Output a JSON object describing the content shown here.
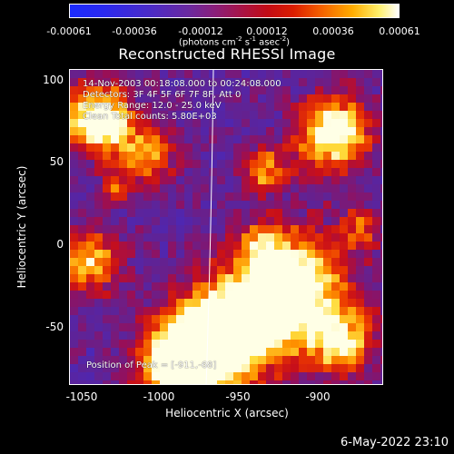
{
  "colorbar": {
    "tick_labels": [
      "-0.00061",
      "-0.00036",
      "-0.00012",
      "0.00012",
      "0.00036",
      "0.00061"
    ],
    "units": {
      "prefix": "(photons cm",
      "exp1": "-2",
      "mid1": " s",
      "exp2": "-1",
      "mid2": " asec",
      "exp3": "-2",
      "suffix": ")"
    },
    "colors": [
      "#1b2bff",
      "#6a2aa0",
      "#c20b16",
      "#f35d00",
      "#ffad00",
      "#ffffff"
    ]
  },
  "title": "Reconstructed RHESSI Image",
  "annotations": {
    "time_range": "14-Nov-2003 00:18:08.000 to 00:24:08.000",
    "detectors": "Detectors: 3F 4F 5F 6F 7F 8F, Att 0",
    "energy_range": "Energy Range: 12.0 - 25.0 keV",
    "clean_counts": "Clean     Total counts: 5.80E+03",
    "peak_position": "Position of Peak = [-911,-68]"
  },
  "axes": {
    "xlabel": "Heliocentric X (arcsec)",
    "ylabel": "Heliocentric Y (arcsec)",
    "x_ticks": [
      "-1050",
      "-1000",
      "-950",
      "-900"
    ],
    "y_ticks": [
      "100",
      "50",
      "0",
      "-50"
    ]
  },
  "footer": {
    "timestamp": "6-May-2022 23:10"
  }
}
